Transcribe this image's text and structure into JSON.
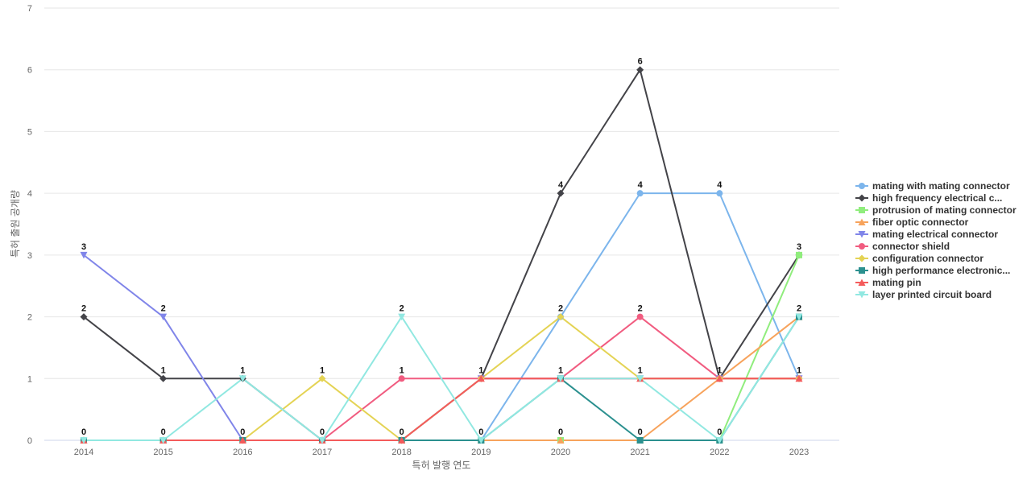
{
  "chart_data": {
    "type": "line",
    "title": "",
    "xlabel": "특허 발행 연도",
    "ylabel": "특허 출원 공개량",
    "x": [
      "2014",
      "2015",
      "2016",
      "2017",
      "2018",
      "2019",
      "2020",
      "2021",
      "2022",
      "2023"
    ],
    "ylim": [
      0,
      7
    ],
    "yticks": [
      0,
      1,
      2,
      3,
      4,
      5,
      6,
      7
    ],
    "grid": true,
    "legend_position": "right",
    "series": [
      {
        "name": "mating with mating connector",
        "color": "#7cb5ec",
        "marker": "circle",
        "values": [
          0,
          0,
          0,
          0,
          0,
          0,
          2,
          4,
          4,
          1
        ]
      },
      {
        "name": "high frequency electrical c...",
        "color": "#434348",
        "marker": "diamond",
        "values": [
          2,
          1,
          1,
          0,
          0,
          1,
          4,
          6,
          1,
          3
        ]
      },
      {
        "name": "protrusion of mating connector",
        "color": "#90ed7d",
        "marker": "square",
        "values": [
          0,
          0,
          0,
          0,
          0,
          0,
          0,
          0,
          0,
          3
        ]
      },
      {
        "name": "fiber optic connector",
        "color": "#f7a35c",
        "marker": "triangle",
        "values": [
          0,
          0,
          0,
          0,
          0,
          0,
          0,
          0,
          1,
          2
        ]
      },
      {
        "name": "mating electrical connector",
        "color": "#8085e9",
        "marker": "triangle-down",
        "values": [
          3,
          2,
          0,
          0,
          0,
          1,
          1,
          1,
          1,
          1
        ]
      },
      {
        "name": "connector shield",
        "color": "#f15c80",
        "marker": "circle",
        "values": [
          0,
          0,
          0,
          0,
          1,
          1,
          1,
          2,
          1,
          1
        ]
      },
      {
        "name": "configuration connector",
        "color": "#e4d354",
        "marker": "diamond",
        "values": [
          0,
          0,
          0,
          1,
          0,
          1,
          2,
          1,
          1,
          1
        ]
      },
      {
        "name": "high performance electronic...",
        "color": "#2b908f",
        "marker": "square",
        "values": [
          0,
          0,
          0,
          0,
          0,
          0,
          1,
          0,
          0,
          2
        ]
      },
      {
        "name": "mating pin",
        "color": "#f45b5b",
        "marker": "triangle",
        "values": [
          0,
          0,
          0,
          0,
          0,
          1,
          1,
          1,
          1,
          1
        ]
      },
      {
        "name": "layer printed circuit board",
        "color": "#91e8e1",
        "marker": "triangle-down",
        "values": [
          0,
          0,
          1,
          0,
          2,
          0,
          1,
          1,
          0,
          2
        ]
      }
    ],
    "data_labels": [
      {
        "x": "2014",
        "value": 3
      },
      {
        "x": "2014",
        "value": 2
      },
      {
        "x": "2014",
        "value": 0
      },
      {
        "x": "2015",
        "value": 2
      },
      {
        "x": "2015",
        "value": 1
      },
      {
        "x": "2015",
        "value": 0
      },
      {
        "x": "2016",
        "value": 1
      },
      {
        "x": "2016",
        "value": 0
      },
      {
        "x": "2017",
        "value": 1
      },
      {
        "x": "2017",
        "value": 0
      },
      {
        "x": "2018",
        "value": 2
      },
      {
        "x": "2018",
        "value": 1
      },
      {
        "x": "2018",
        "value": 0
      },
      {
        "x": "2019",
        "value": 1
      },
      {
        "x": "2019",
        "value": 0
      },
      {
        "x": "2020",
        "value": 4
      },
      {
        "x": "2020",
        "value": 2
      },
      {
        "x": "2020",
        "value": 1
      },
      {
        "x": "2020",
        "value": 0
      },
      {
        "x": "2021",
        "value": 6
      },
      {
        "x": "2021",
        "value": 4
      },
      {
        "x": "2021",
        "value": 2
      },
      {
        "x": "2021",
        "value": 1
      },
      {
        "x": "2021",
        "value": 0
      },
      {
        "x": "2022",
        "value": 4
      },
      {
        "x": "2022",
        "value": 1
      },
      {
        "x": "2022",
        "value": 0
      },
      {
        "x": "2023",
        "value": 3
      },
      {
        "x": "2023",
        "value": 2
      },
      {
        "x": "2023",
        "value": 1
      }
    ]
  }
}
